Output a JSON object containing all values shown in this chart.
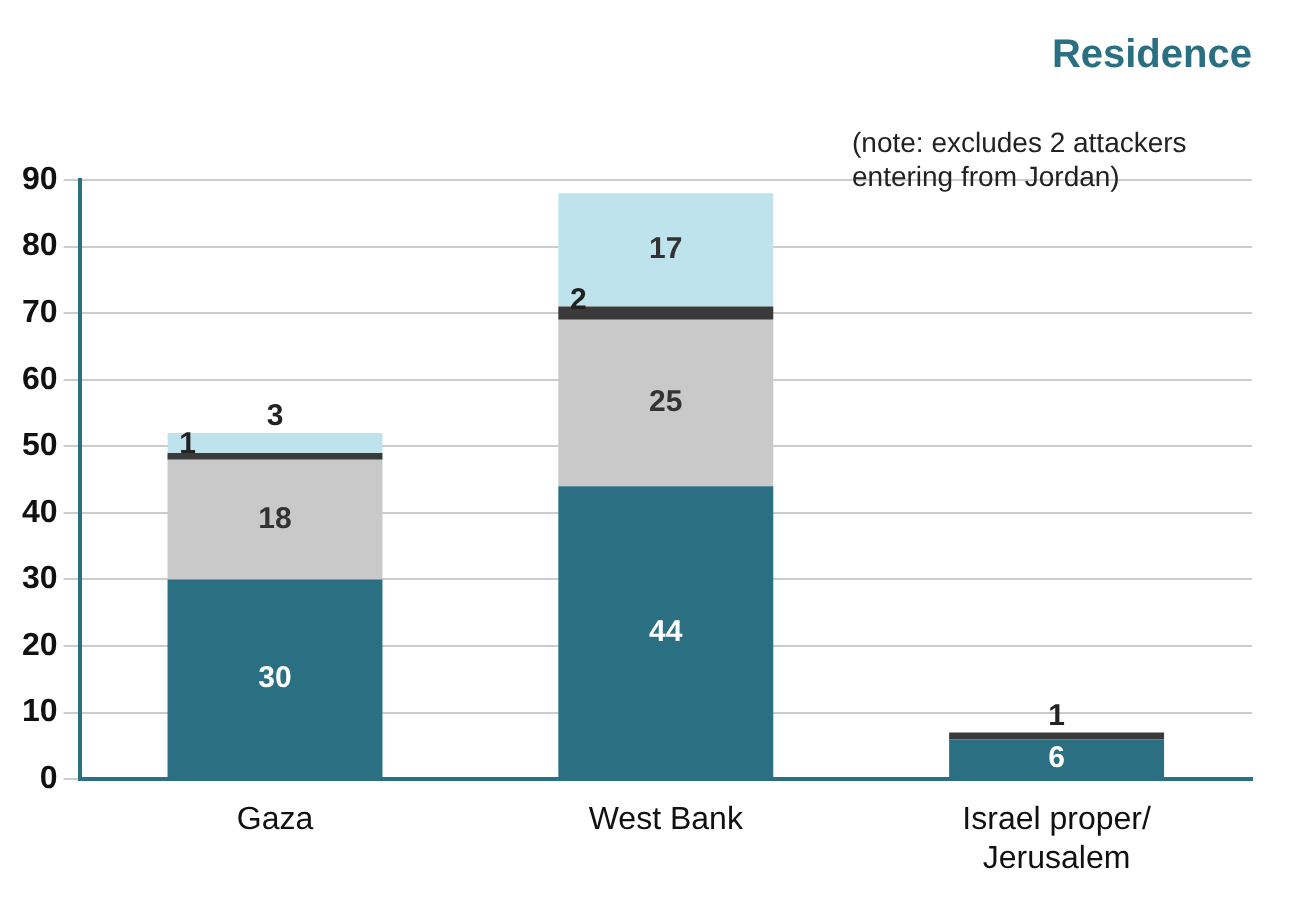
{
  "chart_data": {
    "type": "bar",
    "title": "Residence",
    "annotations": [
      "(note: excludes 2 attackers entering from Jordan)"
    ],
    "categories": [
      "Gaza",
      "West Bank",
      "Israel proper/ Jerusalem"
    ],
    "stacked": true,
    "series": [
      {
        "color": "#2b6f82",
        "values": [
          30,
          44,
          6
        ]
      },
      {
        "color": "#c9c9c9",
        "values": [
          18,
          25,
          null
        ]
      },
      {
        "color": "#3a3a3a",
        "values": [
          1,
          2,
          1
        ]
      },
      {
        "color": "#bfe3ed",
        "values": [
          3,
          17,
          null
        ]
      }
    ],
    "ylim": [
      0,
      90
    ],
    "yticks": [
      0,
      10,
      20,
      30,
      40,
      50,
      60,
      70,
      80,
      90
    ],
    "grid": "y",
    "data_labels": true,
    "legend": false
  }
}
